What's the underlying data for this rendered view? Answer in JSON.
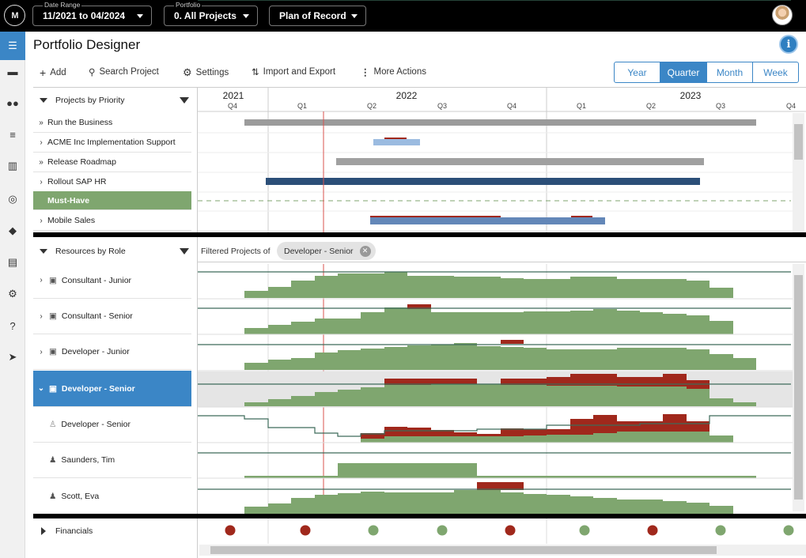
{
  "topbar": {
    "logo_text": "M",
    "date_range": {
      "caption": "Date Range",
      "value": "11/2021 to 04/2024"
    },
    "portfolio": {
      "caption": "Portfolio",
      "value": "0. All Projects"
    },
    "scenario": {
      "value": "Plan of Record"
    }
  },
  "nav_icons": [
    "menu-icon",
    "person-card-icon",
    "people-icon",
    "list-icon",
    "columns-icon",
    "target-icon",
    "diamond-icon",
    "document-icon",
    "gear-icon",
    "help-icon",
    "compass-icon"
  ],
  "page_title": "Portfolio Designer",
  "toolbar": {
    "add": "Add",
    "search": "Search Project",
    "settings": "Settings",
    "import_export": "Import and Export",
    "more": "More Actions"
  },
  "view_modes": {
    "items": [
      "Year",
      "Quarter",
      "Month",
      "Week"
    ],
    "selected": "Quarter"
  },
  "timeline": {
    "years": [
      "2021",
      "2022",
      "2023"
    ],
    "quarters": [
      "Q4",
      "Q1",
      "Q2",
      "Q3",
      "Q4",
      "Q1",
      "Q2",
      "Q3",
      "Q4"
    ]
  },
  "projects": {
    "header": "Projects by Priority",
    "rows": [
      {
        "label": "Run the Business",
        "chevron": "»"
      },
      {
        "label": "ACME Inc Implementation Support",
        "chevron": "›"
      },
      {
        "label": "Release Roadmap",
        "chevron": "»"
      },
      {
        "label": "Rollout SAP HR",
        "chevron": "›"
      },
      {
        "label": "Must-Have",
        "chevron": ""
      },
      {
        "label": "Mobile Sales",
        "chevron": "›"
      }
    ]
  },
  "resources": {
    "header": "Resources by Role",
    "filter_label": "Filtered Projects of",
    "filter_chip": "Developer - Senior",
    "rows": [
      {
        "label": "Consultant - Junior"
      },
      {
        "label": "Consultant - Senior"
      },
      {
        "label": "Developer - Junior"
      },
      {
        "label": "Developer - Senior"
      },
      {
        "label": "Developer - Senior"
      },
      {
        "label": "Saunders, Tim"
      },
      {
        "label": "Scott, Eva"
      }
    ]
  },
  "financials": {
    "label": "Financials",
    "status": [
      "red",
      "red",
      "green",
      "green",
      "red",
      "green",
      "red",
      "green",
      "green"
    ]
  },
  "colors": {
    "accent": "#3b86c6",
    "green": "#7fa66f",
    "red": "#a0281c",
    "must_have": "#7fa66f",
    "today": "#d9534f"
  }
}
